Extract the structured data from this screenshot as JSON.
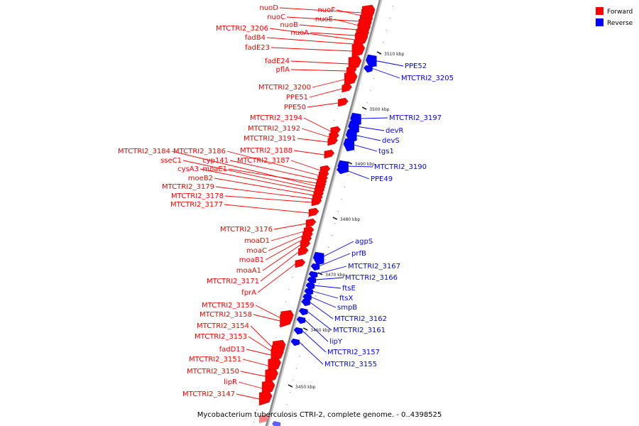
{
  "caption": "Mycobacterium tuberculosis CTRI-2, complete genome. - 0..4398525",
  "legend": [
    {
      "label": "Forward",
      "color": "#ff0000"
    },
    {
      "label": "Reverse",
      "color": "#0000ff"
    }
  ],
  "colors": {
    "forward": "#ff0000",
    "reverse": "#0000ff",
    "axis": "#888888",
    "tick": "#222222"
  },
  "ticks": [
    "3450 kbp",
    "3460 kbp",
    "3470 kbp",
    "3480 kbp",
    "3490 kbp",
    "3500 kbp",
    "3510 kbp"
  ],
  "forward_genes": [
    "nuoD",
    "nuoF",
    "nuoC",
    "nuoE",
    "nuoB",
    "nuoA",
    "MTCTRI2_3206",
    "fadB4",
    "fadE23",
    "fadE24",
    "pflA",
    "MTCTRI2_3200",
    "PPE51",
    "PPE50",
    "MTCTRI2_3194",
    "MTCTRI2_3192",
    "MTCTRI2_3191",
    "MTCTRI2_3184",
    "MTCTRI2_3186",
    "MTCTRI2_3188",
    "sseC1",
    "cyp141",
    "MTCTRI2_3187",
    "cysA3",
    "moaE1",
    "moeB2",
    "MTCTRI2_3179",
    "MTCTRI2_3178",
    "MTCTRI2_3177",
    "MTCTRI2_3176",
    "moaD1",
    "moaC",
    "moaB1",
    "moaA1",
    "MTCTRI2_3171",
    "fprA",
    "MTCTRI2_3159",
    "MTCTRI2_3158",
    "MTCTRI2_3154",
    "MTCTRI2_3153",
    "fadD13",
    "MTCTRI2_3151",
    "MTCTRI2_3150",
    "lipR",
    "MTCTRI2_3147"
  ],
  "reverse_genes": [
    "PPE52",
    "MTCTRI2_3205",
    "MTCTRI2_3197",
    "devR",
    "devS",
    "tgs1",
    "MTCTRI2_3190",
    "PPE49",
    "agpS",
    "prfB",
    "MTCTRI2_3167",
    "MTCTRI2_3166",
    "ftsE",
    "ftsX",
    "smpB",
    "MTCTRI2_3162",
    "MTCTRI2_3161",
    "lipY",
    "MTCTRI2_3157",
    "MTCTRI2_3155"
  ]
}
